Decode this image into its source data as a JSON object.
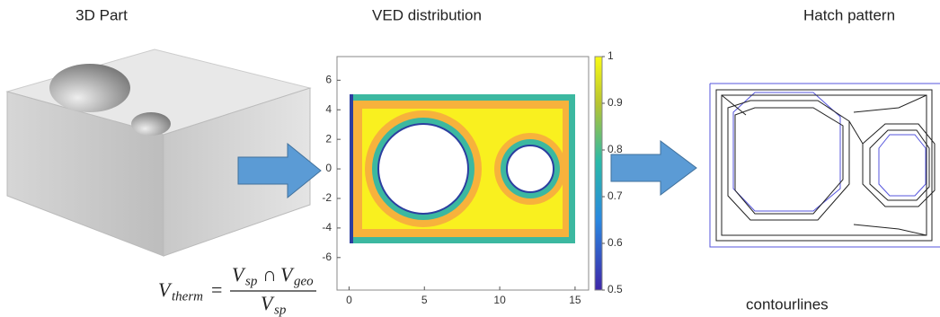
{
  "titles": [
    "3D Part",
    "VED distribution",
    "Hatch pattern"
  ],
  "formula": {
    "lhs": "V",
    "lhs_sub": "therm",
    "equals": "=",
    "num_v1": "V",
    "num_sub1": "sp",
    "cap": "∩",
    "num_v2": "V",
    "num_sub2": "geo",
    "den_v": "V",
    "den_sub": "sp"
  },
  "plot": {
    "xlim": [
      -0.8,
      15.9
    ],
    "ylim": [
      -8.2,
      7.6
    ],
    "xticks": [
      0,
      5,
      10,
      15
    ],
    "yticks": [
      -6,
      -4,
      -2,
      0,
      2,
      4,
      6
    ],
    "colorbar": {
      "lim": [
        0.5,
        1
      ],
      "ticks": [
        0.5,
        0.6,
        0.7,
        0.8,
        0.9,
        1
      ]
    }
  },
  "caption": "contourlines"
}
